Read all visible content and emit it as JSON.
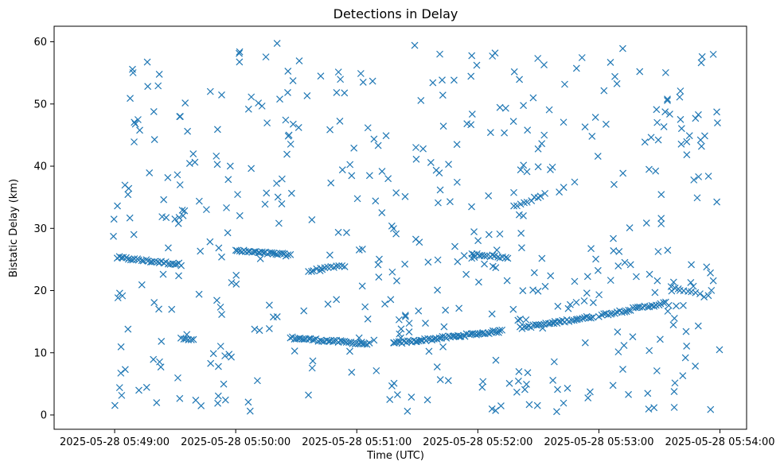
{
  "chart_data": {
    "type": "scatter",
    "title": "Detections in Delay",
    "xlabel": "Time (UTC)",
    "ylabel": "Bistatic Delay (km)",
    "marker": "x",
    "color": "#1f77b4",
    "grid": false,
    "xlim": [
      -0.5,
      5.22
    ],
    "ylim": [
      -2.3,
      62.5
    ],
    "x_ticks": [
      {
        "value": 0,
        "label": "2025-05-28 05:49:00"
      },
      {
        "value": 1,
        "label": "2025-05-28 05:50:00"
      },
      {
        "value": 2,
        "label": "2025-05-28 05:51:00"
      },
      {
        "value": 3,
        "label": "2025-05-28 05:52:00"
      },
      {
        "value": 4,
        "label": "2025-05-28 05:53:00"
      },
      {
        "value": 5,
        "label": "2025-05-28 05:54:00"
      }
    ],
    "y_ticks": [
      0,
      10,
      20,
      30,
      40,
      50,
      60
    ],
    "x_unit_note": "x values in minutes after 05:49:00",
    "tracks": [
      {
        "x_start": 0.02,
        "x_end": 0.55,
        "y_start": 25.3,
        "y_end": 24.2,
        "count": 30
      },
      {
        "x_start": 0.55,
        "x_end": 0.65,
        "y_start": 12.5,
        "y_end": 12.0,
        "count": 6
      },
      {
        "x_start": 1.0,
        "x_end": 1.45,
        "y_start": 26.4,
        "y_end": 25.7,
        "count": 28
      },
      {
        "x_start": 1.45,
        "x_end": 2.1,
        "y_start": 12.4,
        "y_end": 11.4,
        "count": 40
      },
      {
        "x_start": 1.6,
        "x_end": 1.9,
        "y_start": 23.1,
        "y_end": 24.0,
        "count": 14
      },
      {
        "x_start": 2.3,
        "x_end": 3.2,
        "y_start": 11.5,
        "y_end": 13.5,
        "count": 60
      },
      {
        "x_start": 2.95,
        "x_end": 3.25,
        "y_start": 26.0,
        "y_end": 25.2,
        "count": 15
      },
      {
        "x_start": 3.3,
        "x_end": 3.55,
        "y_start": 33.5,
        "y_end": 35.5,
        "count": 10
      },
      {
        "x_start": 3.35,
        "x_end": 3.95,
        "y_start": 14.0,
        "y_end": 15.8,
        "count": 35
      },
      {
        "x_start": 4.0,
        "x_end": 4.55,
        "y_start": 16.0,
        "y_end": 18.0,
        "count": 30
      },
      {
        "x_start": 4.6,
        "x_end": 4.9,
        "y_start": 20.5,
        "y_end": 19.0,
        "count": 10
      }
    ],
    "noise": {
      "count": 480,
      "x_range": [
        -0.02,
        5.0
      ],
      "y_range": [
        0.5,
        60.0
      ]
    }
  }
}
